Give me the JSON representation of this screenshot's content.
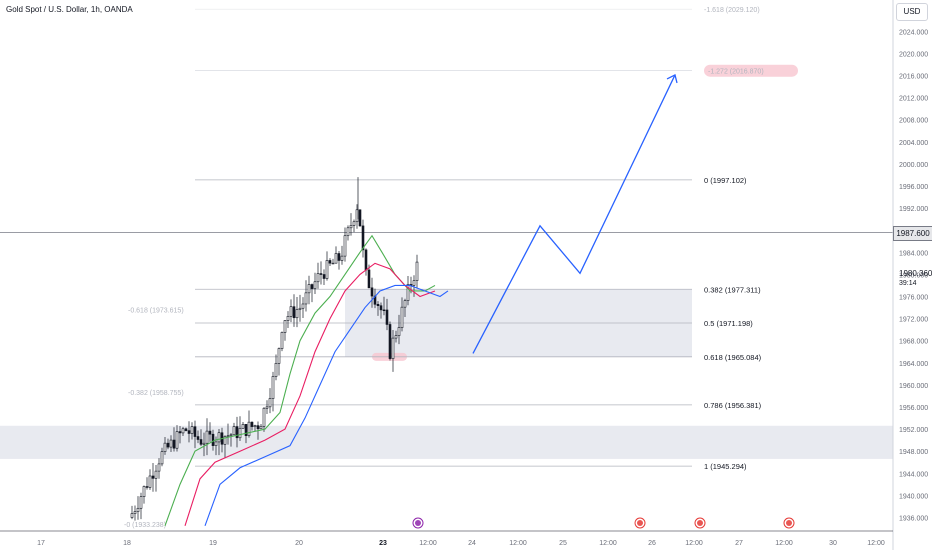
{
  "symbol_title": "Gold Spot / U.S. Dollar, 1h, OANDA",
  "currency_button": "USD",
  "current_price_tag": "1987.600",
  "last_price": "1980.360",
  "countdown": "39:14",
  "colors": {
    "grid_line": "#b2b5be",
    "zone_fill": "#e0e3eb",
    "ma_green": "#4caf50",
    "ma_red": "#e91e63",
    "ma_blue": "#2962ff",
    "projection": "#2962ff",
    "highlight": "#f7c6cf",
    "candle": "#131722"
  },
  "chart_data": {
    "type": "candlestick",
    "x_tick_labels": [
      "17",
      "18",
      "19",
      "20",
      "23",
      "12:00",
      "24",
      "12:00",
      "25",
      "12:00",
      "26",
      "12:00",
      "27",
      "12:00",
      "30",
      "12:00"
    ],
    "y_tick_labels": [
      "2024.000",
      "2020.000",
      "2016.000",
      "2012.000",
      "2008.000",
      "2004.000",
      "2000.000",
      "1996.000",
      "1992.000",
      "1988.000",
      "1984.000",
      "1980.000",
      "1976.000",
      "1972.000",
      "1968.000",
      "1964.000",
      "1960.000",
      "1956.000",
      "1952.000",
      "1948.000",
      "1944.000",
      "1940.000",
      "1936.000"
    ],
    "ylim": [
      1934.5,
      2028.5
    ],
    "fib_levels": [
      {
        "label": "0 (1997.102)",
        "value": 1997.102
      },
      {
        "label": "0.382 (1977.311)",
        "value": 1977.311
      },
      {
        "label": "0.5 (1971.198)",
        "value": 1971.198
      },
      {
        "label": "0.618 (1965.084)",
        "value": 1965.084
      },
      {
        "label": "0.786 (1956.381)",
        "value": 1956.381
      },
      {
        "label": "1 (1945.294)",
        "value": 1945.294
      }
    ],
    "faded_fib_levels": [
      {
        "label": "-1.618 (2029.120)",
        "value": 2028.0
      },
      {
        "label": "-1.272 (2016.870)",
        "value": 2016.87
      },
      {
        "label": "-0.618 (1973.615)",
        "value": 1973.615
      },
      {
        "label": "-0.382 (1958.755)",
        "value": 1958.755
      },
      {
        "label": "-0 (1933.238)",
        "value": 1934.8
      }
    ],
    "current_price": 1987.6
  }
}
